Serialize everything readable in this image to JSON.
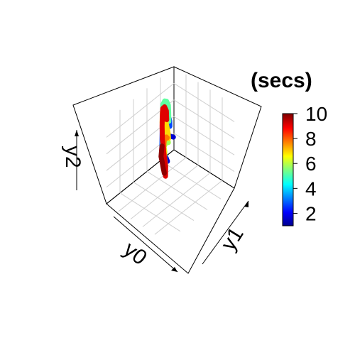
{
  "chart_data": {
    "type": "line3d",
    "axes": {
      "x": "y0",
      "y": "y1",
      "z": "y2"
    },
    "color_variable": {
      "title": "(secs)",
      "range": [
        1,
        10
      ],
      "ticks": [
        2,
        4,
        6,
        8,
        10
      ],
      "palette": "jet"
    },
    "grid": true,
    "series": [
      {
        "t": 1,
        "color": "#00008f",
        "points": [
          [
            -0.3,
            -0.2,
            0.55
          ],
          [
            -0.25,
            -0.15,
            0.58
          ],
          [
            -0.2,
            -0.1,
            0.6
          ],
          [
            -0.15,
            -0.05,
            0.57
          ],
          [
            -0.1,
            -0.02,
            0.54
          ]
        ]
      },
      {
        "t": 2,
        "color": "#0000d0",
        "points": [
          [
            -0.4,
            0.0,
            0.05
          ],
          [
            -0.3,
            0.05,
            0.15
          ],
          [
            -0.15,
            0.1,
            0.3
          ],
          [
            0.0,
            0.15,
            0.45
          ],
          [
            0.1,
            0.2,
            0.55
          ],
          [
            0.15,
            0.25,
            0.6
          ],
          [
            0.2,
            0.3,
            0.55
          ],
          [
            0.25,
            0.35,
            0.4
          ],
          [
            0.25,
            0.4,
            0.2
          ],
          [
            0.2,
            0.45,
            0.0
          ]
        ]
      },
      {
        "t": 3,
        "color": "#0048ff",
        "points": [
          [
            -0.55,
            -0.3,
            0.1
          ],
          [
            -0.5,
            -0.25,
            0.3
          ],
          [
            -0.4,
            -0.2,
            0.55
          ],
          [
            -0.25,
            -0.1,
            0.75
          ],
          [
            -0.1,
            0.0,
            0.85
          ],
          [
            0.05,
            0.1,
            0.85
          ],
          [
            0.15,
            0.2,
            0.75
          ],
          [
            0.2,
            0.25,
            0.6
          ],
          [
            0.25,
            0.3,
            0.4
          ],
          [
            0.3,
            0.35,
            0.2
          ]
        ]
      },
      {
        "t": 5,
        "color": "#00d8ff",
        "points": [
          [
            -0.6,
            -0.45,
            -0.3
          ],
          [
            -0.55,
            -0.4,
            -0.1
          ],
          [
            -0.45,
            -0.3,
            0.1
          ],
          [
            -0.3,
            -0.2,
            0.25
          ],
          [
            -0.15,
            -0.05,
            0.35
          ],
          [
            0.0,
            0.05,
            0.4
          ],
          [
            0.1,
            0.15,
            0.35
          ],
          [
            0.2,
            0.25,
            0.25
          ],
          [
            0.25,
            0.35,
            0.1
          ],
          [
            0.3,
            0.45,
            -0.1
          ]
        ]
      },
      {
        "t": 6,
        "color": "#a0ff50",
        "points": [
          [
            -0.5,
            -0.3,
            -0.3
          ],
          [
            -0.4,
            -0.2,
            -0.15
          ],
          [
            -0.25,
            -0.1,
            0.0
          ],
          [
            -0.1,
            0.05,
            0.1
          ],
          [
            0.05,
            0.15,
            0.15
          ],
          [
            0.15,
            0.3,
            0.15
          ],
          [
            0.25,
            0.4,
            0.1
          ],
          [
            0.3,
            0.5,
            -0.05
          ]
        ]
      },
      {
        "t": 6.5,
        "color": "#5fffa0",
        "points": [
          [
            -0.65,
            -0.45,
            0.1
          ],
          [
            -0.6,
            -0.4,
            0.4
          ],
          [
            -0.5,
            -0.3,
            0.7
          ],
          [
            -0.35,
            -0.2,
            0.95
          ],
          [
            -0.2,
            -0.1,
            1.1
          ],
          [
            -0.05,
            0.0,
            1.15
          ],
          [
            0.05,
            0.1,
            1.1
          ],
          [
            0.15,
            0.2,
            0.95
          ],
          [
            0.2,
            0.3,
            0.75
          ],
          [
            0.25,
            0.35,
            0.5
          ]
        ]
      },
      {
        "t": 7.5,
        "color": "#ffd800",
        "points": [
          [
            -0.55,
            -0.35,
            -0.25
          ],
          [
            -0.45,
            -0.25,
            0.0
          ],
          [
            -0.3,
            -0.15,
            0.4
          ],
          [
            -0.15,
            -0.05,
            0.8
          ],
          [
            0.0,
            0.05,
            1.05
          ],
          [
            0.1,
            0.15,
            1.1
          ],
          [
            0.2,
            0.25,
            0.95
          ],
          [
            0.25,
            0.35,
            0.65
          ],
          [
            0.3,
            0.45,
            0.3
          ],
          [
            0.35,
            0.5,
            0.0
          ]
        ]
      },
      {
        "t": 8,
        "color": "#ff7800",
        "points": [
          [
            -0.55,
            -0.4,
            -0.25
          ],
          [
            -0.45,
            -0.3,
            -0.15
          ],
          [
            -0.3,
            -0.15,
            0.05
          ],
          [
            -0.15,
            -0.05,
            0.15
          ],
          [
            0.0,
            0.1,
            0.2
          ],
          [
            0.1,
            0.2,
            0.2
          ],
          [
            0.2,
            0.3,
            0.1
          ],
          [
            0.25,
            0.4,
            -0.05
          ]
        ]
      },
      {
        "t": 9,
        "color": "#e00000",
        "points": [
          [
            -0.4,
            -0.25,
            0.4
          ],
          [
            -0.3,
            -0.15,
            0.75
          ],
          [
            -0.15,
            -0.05,
            1.0
          ],
          [
            0.0,
            0.05,
            1.1
          ],
          [
            0.1,
            0.15,
            1.05
          ],
          [
            0.2,
            0.25,
            0.85
          ],
          [
            0.28,
            0.35,
            0.6
          ],
          [
            0.32,
            0.45,
            0.3
          ],
          [
            0.35,
            0.55,
            0.0
          ],
          [
            0.4,
            0.6,
            -0.2
          ]
        ]
      },
      {
        "t": 10,
        "color": "#8f0000",
        "points": [
          [
            -0.2,
            -0.2,
            -0.15
          ],
          [
            -0.05,
            -0.05,
            -0.12
          ],
          [
            0.1,
            0.1,
            -0.1
          ],
          [
            0.2,
            0.25,
            -0.1
          ],
          [
            0.3,
            0.4,
            -0.12
          ],
          [
            0.35,
            0.5,
            -0.2
          ]
        ]
      }
    ]
  }
}
